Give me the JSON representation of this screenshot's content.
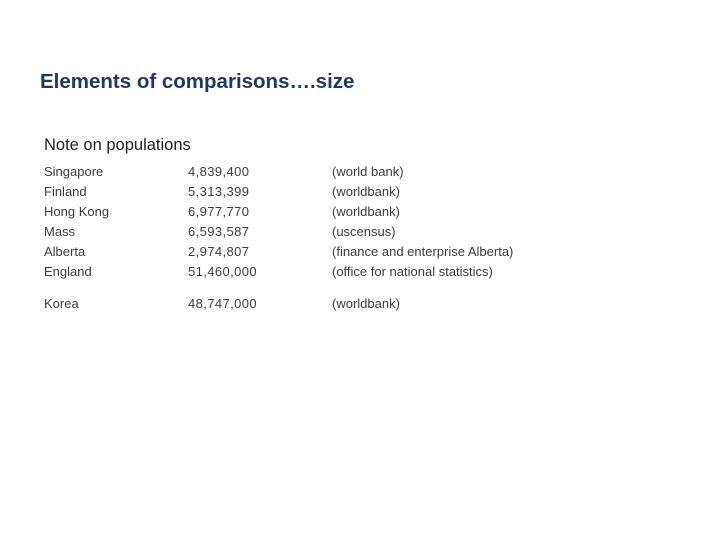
{
  "title": "Elements of comparisons….size",
  "subtitle": "Note on populations",
  "rows": [
    {
      "country": "Singapore",
      "population": "4,839,400",
      "source": "(world bank)"
    },
    {
      "country": "Finland",
      "population": "5,313,399",
      "source": "(worldbank)"
    },
    {
      "country": "Hong Kong",
      "population": "6,977,770",
      "source": "(worldbank)"
    },
    {
      "country": "Mass",
      "population": "6,593,587",
      "source": "(uscensus)"
    },
    {
      "country": "Alberta",
      "population": "2,974,807",
      "source": "(finance and enterprise Alberta)"
    },
    {
      "country": "England",
      "population": "51,460,000",
      "source": "(office for national statistics)"
    },
    {
      "country": "Korea",
      "population": "48,747,000",
      "source": "(worldbank)"
    }
  ]
}
